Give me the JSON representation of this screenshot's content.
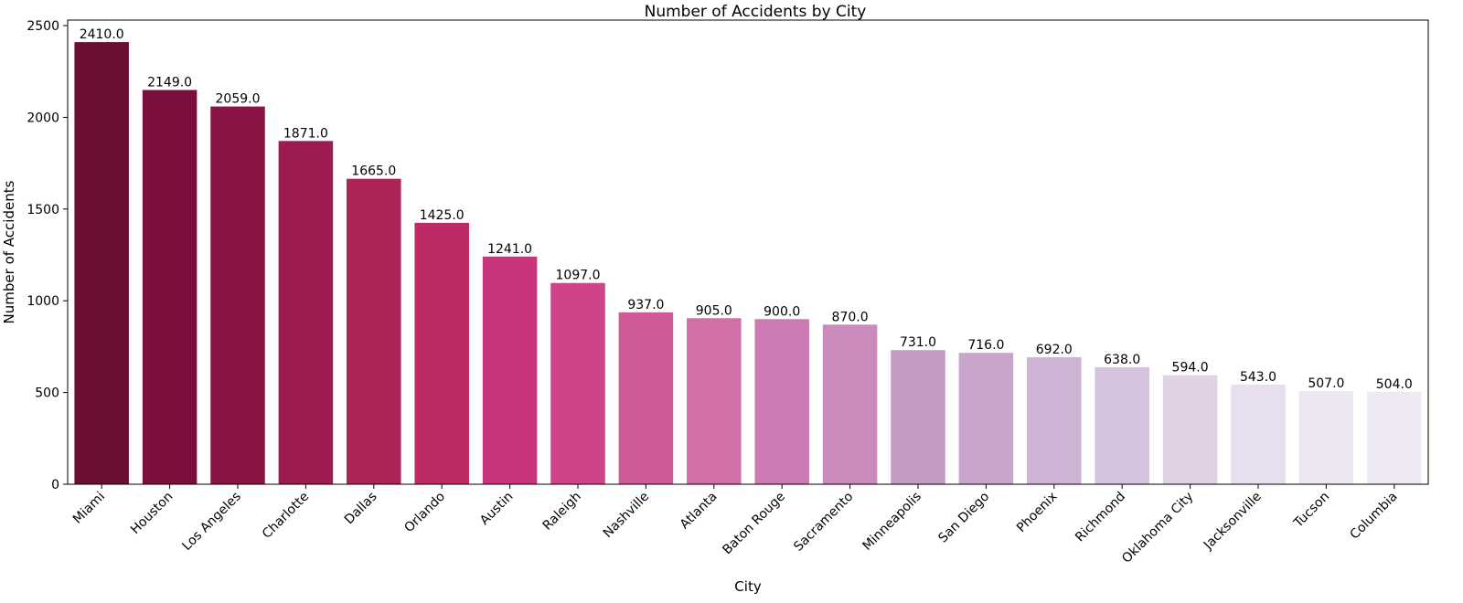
{
  "chart_data": {
    "type": "bar",
    "title": "Number of Accidents by City",
    "xlabel": "City",
    "ylabel": "Number of Accidents",
    "categories": [
      "Miami",
      "Houston",
      "Los Angeles",
      "Charlotte",
      "Dallas",
      "Orlando",
      "Austin",
      "Raleigh",
      "Nashville",
      "Atlanta",
      "Baton Rouge",
      "Sacramento",
      "Minneapolis",
      "San Diego",
      "Phoenix",
      "Richmond",
      "Oklahoma City",
      "Jacksonville",
      "Tucson",
      "Columbia"
    ],
    "values": [
      2410,
      2149,
      2059,
      1871,
      1665,
      1425,
      1241,
      1097,
      937,
      905,
      900,
      870,
      731,
      716,
      692,
      638,
      594,
      543,
      507,
      504
    ],
    "value_labels": [
      "2410.0",
      "2149.0",
      "2059.0",
      "1871.0",
      "1665.0",
      "1425.0",
      "1241.0",
      "1097.0",
      "937.0",
      "905.0",
      "900.0",
      "870.0",
      "731.0",
      "716.0",
      "692.0",
      "638.0",
      "594.0",
      "543.0",
      "507.0",
      "504.0"
    ],
    "colors": [
      "#6a0f31",
      "#7a0f3d",
      "#8a1446",
      "#9c1b50",
      "#ad2459",
      "#bd2b66",
      "#c8357b",
      "#cf4388",
      "#d05a98",
      "#d070a6",
      "#cc7ab1",
      "#c98bba",
      "#c49bc0",
      "#c8a6cb",
      "#cdb3d4",
      "#d6c3dd",
      "#e0d1e5",
      "#e7dff0",
      "#ece7f3",
      "#eee9f5"
    ],
    "yticks": [
      "0",
      "500",
      "1000",
      "1500",
      "2000",
      "2500"
    ],
    "ylim": [
      0,
      2530
    ],
    "grid": false,
    "legend": "none"
  }
}
